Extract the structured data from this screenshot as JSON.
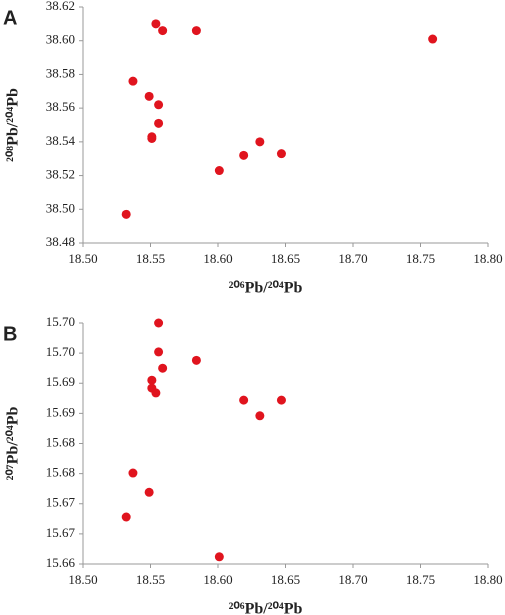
{
  "chart_data": [
    {
      "type": "scatter",
      "panel_label": "A",
      "xlabel": "²⁰⁶Pb/²⁰⁴Pb",
      "ylabel": "²⁰⁸Pb/²⁰⁴Pb",
      "color": "#e0141e",
      "x": [
        18.554,
        18.559,
        18.584,
        18.759,
        18.537,
        18.549,
        18.556,
        18.556,
        18.551,
        18.551,
        18.631,
        18.619,
        18.647,
        18.601,
        18.532
      ],
      "y": [
        38.61,
        38.606,
        38.606,
        38.601,
        38.576,
        38.567,
        38.562,
        38.551,
        38.543,
        38.542,
        38.54,
        38.532,
        38.533,
        38.523,
        38.497
      ],
      "xlim": [
        18.5,
        18.8
      ],
      "xticks": [
        {
          "value": 18.5,
          "label": "18.50"
        },
        {
          "value": 18.55,
          "label": "18.55"
        },
        {
          "value": 18.6,
          "label": "18.60"
        },
        {
          "value": 18.65,
          "label": "18.65"
        },
        {
          "value": 18.7,
          "label": "18.70"
        },
        {
          "value": 18.75,
          "label": "18.75"
        },
        {
          "value": 18.8,
          "label": "18.80"
        }
      ],
      "ylim": [
        38.48,
        38.62
      ],
      "yticks": [
        {
          "value": 38.48,
          "label": "38.48"
        },
        {
          "value": 38.5,
          "label": "38.50"
        },
        {
          "value": 38.52,
          "label": "38.52"
        },
        {
          "value": 38.54,
          "label": "38.54"
        },
        {
          "value": 38.56,
          "label": "38.56"
        },
        {
          "value": 38.58,
          "label": "38.58"
        },
        {
          "value": 38.6,
          "label": "38.60"
        },
        {
          "value": 38.62,
          "label": "38.62"
        }
      ]
    },
    {
      "type": "scatter",
      "panel_label": "B",
      "xlabel": "²⁰⁶Pb/²⁰⁴Pb",
      "ylabel": "²⁰⁷Pb/²⁰⁴Pb",
      "color": "#e0141e",
      "x": [
        18.556,
        18.556,
        18.559,
        18.584,
        18.551,
        18.551,
        18.554,
        18.619,
        18.647,
        18.631,
        18.537,
        18.549,
        18.532,
        18.601
      ],
      "y": [
        15.7,
        15.6952,
        15.6925,
        15.6938,
        15.6905,
        15.6892,
        15.6884,
        15.6872,
        15.6872,
        15.6846,
        15.6751,
        15.6719,
        15.6678,
        15.6612
      ],
      "xlim": [
        18.5,
        18.8
      ],
      "xticks": [
        {
          "value": 18.5,
          "label": "18.50"
        },
        {
          "value": 18.55,
          "label": "18.55"
        },
        {
          "value": 18.6,
          "label": "18.60"
        },
        {
          "value": 18.65,
          "label": "18.65"
        },
        {
          "value": 18.7,
          "label": "18.70"
        },
        {
          "value": 18.75,
          "label": "18.75"
        },
        {
          "value": 18.8,
          "label": "18.80"
        }
      ],
      "ylim": [
        15.66,
        15.7
      ],
      "yticks": [
        {
          "value": 15.66,
          "label": "15.66"
        },
        {
          "value": 15.665,
          "label": "15.67"
        },
        {
          "value": 15.67,
          "label": "15.67"
        },
        {
          "value": 15.675,
          "label": "15.68"
        },
        {
          "value": 15.68,
          "label": "15.68"
        },
        {
          "value": 15.685,
          "label": "15.69"
        },
        {
          "value": 15.69,
          "label": "15.69"
        },
        {
          "value": 15.695,
          "label": "15.70"
        },
        {
          "value": 15.7,
          "label": "15.70"
        }
      ]
    }
  ]
}
